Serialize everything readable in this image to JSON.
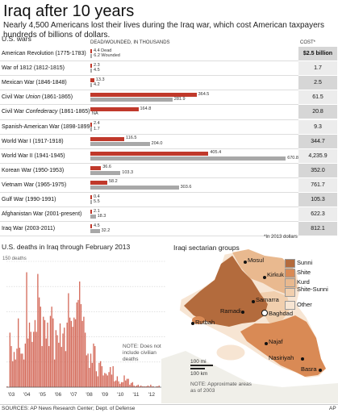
{
  "header": {
    "title": "Iraq after 10 years",
    "subtitle": "Nearly 4,500 Americans lost their lives during the Iraq war, which cost American taxpayers hundreds of billions of dollars."
  },
  "chart_data": [
    {
      "type": "bar",
      "title": "U.S. wars",
      "column_header": "DEAD/WOUNDED, IN THOUSANDS",
      "cost_header": "COST*",
      "footnote": "*In 2013 dollars",
      "first_row_labels": {
        "dead": "Dead",
        "wounded": "Wounded"
      },
      "series": [
        {
          "name": "Dead",
          "color": "#c0392b"
        },
        {
          "name": "Wounded",
          "color": "#a8a8a8"
        }
      ],
      "rows": [
        {
          "war": "American Revolution (1775-1783)",
          "dead": 4.4,
          "dead_label": "4.4",
          "wounded": 6.2,
          "wounded_label": "6.2",
          "cost": "$2.5 billion"
        },
        {
          "war": "War of 1812 (1812-1815)",
          "dead": 2.3,
          "dead_label": "2.3",
          "wounded": 4.5,
          "wounded_label": "4.5",
          "cost": "1.7"
        },
        {
          "war": "Mexican War (1846-1848)",
          "dead": 13.3,
          "dead_label": "13.3",
          "wounded": 4.2,
          "wounded_label": "4.2",
          "cost": "2.5"
        },
        {
          "war": "Civil War",
          "war_em": "Union",
          "war_end": " (1861-1865)",
          "dead": 364.5,
          "dead_label": "364.5",
          "wounded": 281.9,
          "wounded_label": "281.9",
          "cost": "61.5"
        },
        {
          "war": "Civil War",
          "war_em": "Confederacy",
          "war_end": " (1861-1865)",
          "dead": 164.8,
          "dead_label": "164.8",
          "wounded": null,
          "wounded_label": "NA",
          "cost": "20.8"
        },
        {
          "war": "Spanish-American War (1898-1899)",
          "dead": 2.4,
          "dead_label": "2.4",
          "wounded": 1.7,
          "wounded_label": "1.7",
          "cost": "9.3"
        },
        {
          "war": "World War I (1917-1918)",
          "dead": 116.5,
          "dead_label": "116.5",
          "wounded": 204.0,
          "wounded_label": "204.0",
          "cost": "344.7"
        },
        {
          "war": "World War II (1941-1945)",
          "dead": 405.4,
          "dead_label": "405.4",
          "wounded": 670.8,
          "wounded_label": "670.8",
          "cost": "4,235.9"
        },
        {
          "war": "Korean War (1950-1953)",
          "dead": 36.6,
          "dead_label": "36.6",
          "wounded": 103.3,
          "wounded_label": "103.3",
          "cost": "352.0"
        },
        {
          "war": "Vietnam War (1965-1975)",
          "dead": 58.2,
          "dead_label": "58.2",
          "wounded": 303.6,
          "wounded_label": "303.6",
          "cost": "761.7"
        },
        {
          "war": "Gulf War (1990-1991)",
          "dead": 0.4,
          "dead_label": "0.4",
          "wounded": 5.5,
          "wounded_label": "5.5",
          "cost": "105.3"
        },
        {
          "war": "Afghanistan War (2001-present)",
          "dead": 2.1,
          "dead_label": "2.1",
          "wounded": 18.3,
          "wounded_label": "18.3",
          "cost": "622.3"
        },
        {
          "war": "Iraq War (2003-2011)",
          "dead": 4.5,
          "dead_label": "4.5",
          "wounded": 32.2,
          "wounded_label": "32.2",
          "cost": "812.1"
        }
      ]
    },
    {
      "type": "bar",
      "title": "U.S. deaths in Iraq through February 2013",
      "ylabel": "150 deaths",
      "ylim": [
        0,
        150
      ],
      "x_tick_labels": [
        "'03",
        "'04",
        "'05",
        "'06",
        "'07",
        "'08",
        "'09",
        "'10",
        "'11",
        "'12",
        "'13"
      ],
      "note": "NOTE: Does not include civilian deaths",
      "color": "#d46a5a",
      "values": [
        1,
        0,
        65,
        49,
        31,
        42,
        33,
        46,
        82,
        47,
        40,
        40,
        33,
        52,
        137,
        58,
        77,
        66,
        54,
        66,
        80,
        66,
        135,
        107,
        96,
        49,
        84,
        80,
        58,
        77,
        49,
        85,
        96,
        82,
        33,
        68,
        62,
        53,
        76,
        48,
        64,
        71,
        43,
        77,
        112,
        83,
        79,
        72,
        83,
        81,
        101,
        104,
        126,
        99,
        79,
        84,
        65,
        38,
        40,
        23,
        40,
        29,
        52,
        49,
        19,
        13,
        29,
        31,
        25,
        14,
        17,
        16,
        14,
        18,
        24,
        15,
        25,
        7,
        8,
        13,
        7,
        4,
        6,
        6,
        14,
        8,
        10,
        10,
        3,
        5,
        6,
        2,
        1,
        2,
        3,
        1,
        2,
        1,
        1,
        1,
        1,
        2,
        1,
        3,
        1,
        1,
        0,
        1,
        1,
        2,
        0,
        1,
        0,
        1
      ]
    },
    {
      "type": "map",
      "title": "Iraqi sectarian groups",
      "legend": [
        {
          "name": "Sunni",
          "color": "#b36b3d"
        },
        {
          "name": "Shite",
          "color": "#d98a55"
        },
        {
          "name": "Kurd",
          "color": "#e9b98f"
        },
        {
          "name": "Shite-Sunni",
          "color": "#f1cfae"
        },
        {
          "name": "Other",
          "color": "#f7e5d3"
        }
      ],
      "cities": [
        "Mosul",
        "Kirkuk",
        "Samarra",
        "Ramadi",
        "Baghdad",
        "Rutbah",
        "Najaf",
        "Nasiriyah",
        "Basra"
      ],
      "scale": {
        "mi": "100 mi",
        "km": "100 km"
      },
      "note": "NOTE: Approximate areas as of 2003"
    }
  ],
  "footer": {
    "sources": "SOURCES: AP News Research Center; Dept. of Defense",
    "credit": "AP"
  }
}
